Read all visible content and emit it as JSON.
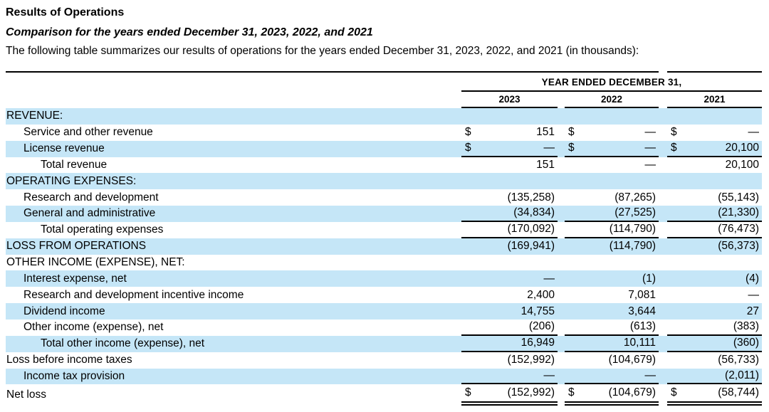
{
  "page": {
    "title": "Results of Operations",
    "subtitle": "Comparison for the years ended December 31, 2023, 2022, and 2021",
    "intro": "The following table summarizes our results of operations for the years ended December 31, 2023, 2022, and 2021 (in thousands):"
  },
  "colors": {
    "stripe_blue": "#c5e6f7",
    "rule_black": "#000000",
    "text_black": "#000000"
  },
  "table": {
    "dollar_sign": "$",
    "header": {
      "group_label": "YEAR ENDED DECEMBER 31,",
      "years": [
        "2023",
        "2022",
        "2021"
      ]
    },
    "rows": [
      {
        "label": "REVENUE:",
        "indent": 0,
        "shaded": true,
        "dollar": false,
        "underline": "none",
        "values": [
          "",
          "",
          ""
        ]
      },
      {
        "label": "Service and other revenue",
        "indent": 1,
        "shaded": false,
        "dollar": true,
        "underline": "none",
        "values": [
          "151",
          "—",
          "—"
        ]
      },
      {
        "label": "License revenue",
        "indent": 1,
        "shaded": true,
        "dollar": true,
        "underline": "single",
        "values": [
          "—",
          "—",
          "20,100"
        ]
      },
      {
        "label": "Total revenue",
        "indent": 2,
        "shaded": false,
        "dollar": false,
        "underline": "none",
        "values": [
          "151",
          "—",
          "20,100"
        ]
      },
      {
        "label": "OPERATING EXPENSES:",
        "indent": 0,
        "shaded": true,
        "dollar": false,
        "underline": "none",
        "values": [
          "",
          "",
          ""
        ]
      },
      {
        "label": "Research and development",
        "indent": 1,
        "shaded": false,
        "dollar": false,
        "underline": "none",
        "values": [
          "(135,258)",
          "(87,265)",
          "(55,143)"
        ]
      },
      {
        "label": "General and administrative",
        "indent": 1,
        "shaded": true,
        "dollar": false,
        "underline": "single",
        "values": [
          "(34,834)",
          "(27,525)",
          "(21,330)"
        ]
      },
      {
        "label": "Total operating expenses",
        "indent": 2,
        "shaded": false,
        "dollar": false,
        "underline": "single",
        "values": [
          "(170,092)",
          "(114,790)",
          "(76,473)"
        ]
      },
      {
        "label": "LOSS FROM OPERATIONS",
        "indent": 0,
        "shaded": true,
        "dollar": false,
        "underline": "none",
        "values": [
          "(169,941)",
          "(114,790)",
          "(56,373)"
        ]
      },
      {
        "label": "OTHER INCOME (EXPENSE), NET:",
        "indent": 0,
        "shaded": false,
        "dollar": false,
        "underline": "none",
        "values": [
          "",
          "",
          ""
        ]
      },
      {
        "label": "Interest expense, net",
        "indent": 1,
        "shaded": true,
        "dollar": false,
        "underline": "none",
        "values": [
          "—",
          "(1)",
          "(4)"
        ]
      },
      {
        "label": "Research and development incentive income",
        "indent": 1,
        "shaded": false,
        "dollar": false,
        "underline": "none",
        "values": [
          "2,400",
          "7,081",
          "—"
        ]
      },
      {
        "label": "Dividend income",
        "indent": 1,
        "shaded": true,
        "dollar": false,
        "underline": "none",
        "values": [
          "14,755",
          "3,644",
          "27"
        ]
      },
      {
        "label": "Other income (expense), net",
        "indent": 1,
        "shaded": false,
        "dollar": false,
        "underline": "single",
        "values": [
          "(206)",
          "(613)",
          "(383)"
        ]
      },
      {
        "label": "Total other income (expense), net",
        "indent": 2,
        "shaded": true,
        "dollar": false,
        "underline": "single",
        "values": [
          "16,949",
          "10,111",
          "(360)"
        ]
      },
      {
        "label": "Loss before income taxes",
        "indent": 0,
        "shaded": false,
        "dollar": false,
        "underline": "none",
        "values": [
          "(152,992)",
          "(104,679)",
          "(56,733)"
        ]
      },
      {
        "label": "Income tax provision",
        "indent": 1,
        "shaded": true,
        "dollar": false,
        "underline": "single",
        "values": [
          "—",
          "—",
          "(2,011)"
        ]
      },
      {
        "label": "Net loss",
        "indent": 0,
        "shaded": false,
        "dollar": true,
        "underline": "double",
        "values": [
          "(152,992)",
          "(104,679)",
          "(58,744)"
        ]
      }
    ]
  }
}
